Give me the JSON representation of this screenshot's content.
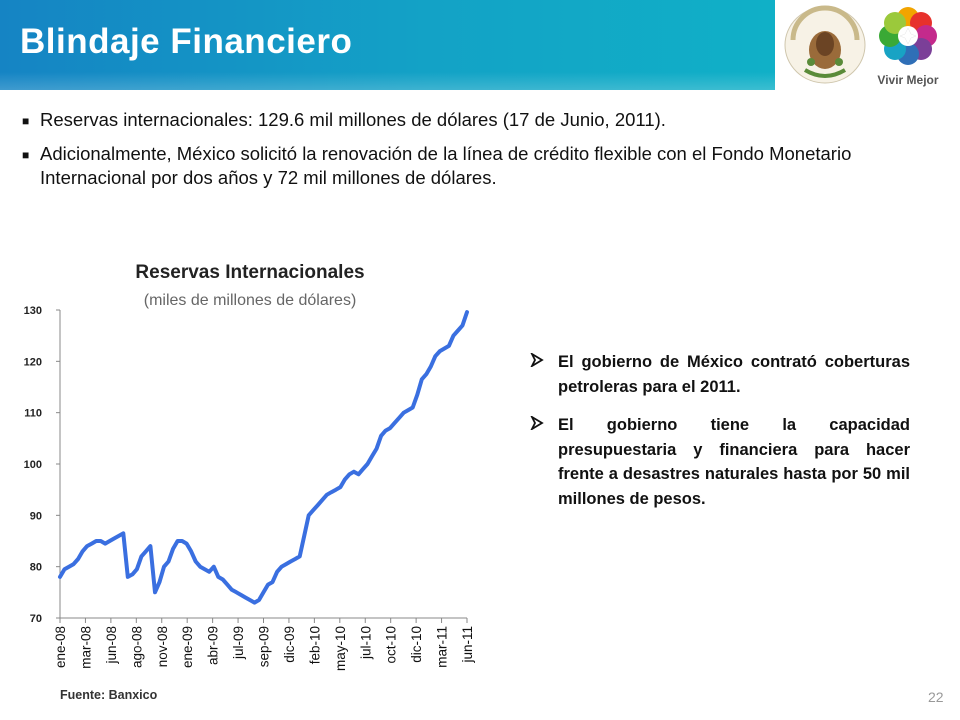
{
  "slide": {
    "title": "Blindaje Financiero",
    "page_number": "22",
    "logo_right_text": "Vivir Mejor",
    "logo_left_text": "ESTADOS UNIDOS MEXICANOS"
  },
  "bullets": [
    {
      "text": "Reservas internacionales: 129.6 mil millones de dólares (17 de Junio, 2011)."
    },
    {
      "text": "Adicionalmente, México solicitó la renovación de la línea de crédito flexible con el Fondo Monetario Internacional por dos años y 72 mil millones de dólares."
    }
  ],
  "side_bullets": [
    {
      "text": "El gobierno de México contrató coberturas petroleras para el 2011."
    },
    {
      "text": "El gobierno tiene la capacidad presupuestaria y financiera para hacer frente a desastres naturales hasta por 50 mil millones de pesos."
    }
  ],
  "source": "Fuente: Banxico",
  "colors": {
    "header": "#1584c4",
    "line": "#3a6fe0"
  },
  "icons": {
    "bullet": "square-bullet-icon",
    "side_bullet": "arrowhead-bullet-icon"
  },
  "chart_data": {
    "type": "line",
    "title": "Reservas Internacionales",
    "subtitle": "(miles de millones de dólares)",
    "xlabel": "",
    "ylabel": "",
    "ylim": [
      70,
      130
    ],
    "yticks": [
      70,
      80,
      90,
      100,
      110,
      120,
      130
    ],
    "x_ticks": [
      "ene-08",
      "mar-08",
      "jun-08",
      "ago-08",
      "nov-08",
      "ene-09",
      "abr-09",
      "jul-09",
      "sep-09",
      "dic-09",
      "feb-10",
      "may-10",
      "jul-10",
      "oct-10",
      "dic-10",
      "mar-11",
      "jun-11"
    ],
    "grid": false,
    "series": [
      {
        "values": [
          78,
          79.5,
          80,
          80.5,
          81.5,
          83,
          84,
          84.5,
          85,
          85,
          84.5,
          85,
          85.5,
          86,
          86.5,
          78,
          78.5,
          79.5,
          82,
          83,
          84,
          75,
          77,
          80,
          81,
          83.5,
          85,
          85,
          84.5,
          83,
          81,
          80,
          79.5,
          79,
          80,
          78,
          77.5,
          76.5,
          75.5,
          75,
          74.5,
          74,
          73.5,
          73,
          73.5,
          75,
          76.5,
          77,
          79,
          80,
          80.5,
          81,
          81.5,
          82,
          86,
          90,
          91,
          92,
          93,
          94,
          94.5,
          95,
          95.5,
          97,
          98,
          98.5,
          98,
          99,
          100,
          101.5,
          103,
          105.5,
          106.5,
          107,
          108,
          109,
          110,
          110.5,
          111,
          113.5,
          116.5,
          117.5,
          119,
          121,
          122,
          122.5,
          123,
          125,
          126,
          127,
          129.6
        ]
      }
    ]
  }
}
